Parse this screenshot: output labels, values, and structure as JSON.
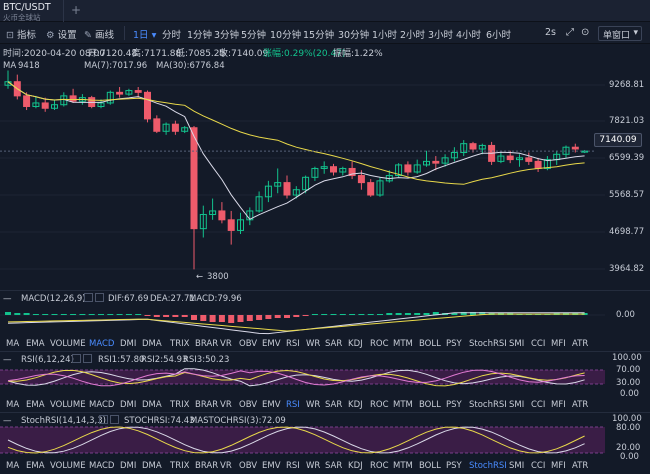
{
  "header": {
    "pair": "BTC/USDT",
    "exchange": "火币全球站",
    "add_tab": "+"
  },
  "toolbar": {
    "indicator": "指标",
    "settings": "设置",
    "draw": "画线",
    "periods": [
      "1日",
      "分时",
      "1分钟",
      "3分钟",
      "5分钟",
      "10分钟",
      "15分钟",
      "30分钟",
      "1小时",
      "2小时",
      "3小时",
      "4小时",
      "6小时"
    ],
    "active_period": "1日",
    "countdown": "2s",
    "layout": "单窗口"
  },
  "info": {
    "time": "时间:2020-04-20 08:00",
    "open": "开:7120.48",
    "high": "高:7171.88",
    "low": "低:7085.25",
    "close": "收:7140.09",
    "change_pct": "涨幅:0.29%(20.47)",
    "amplitude": "振幅:1.22%"
  },
  "main": {
    "ma_label": "MA",
    "ma7": "MA(7):7017.96",
    "ma30": "MA(30):6776.84",
    "high_marker": "9418",
    "low_marker": "3800",
    "price_axis": [
      "9268.81",
      "7821.03",
      "6599.39",
      "5568.57",
      "4698.77",
      "3964.82"
    ],
    "last_price": "7140.09"
  },
  "macd": {
    "name": "MACD(12,26,9)",
    "dif": "DIF:67.69",
    "dea": "DEA:27.71",
    "macd": "MACD:79.96",
    "axis": "0.00"
  },
  "rsi": {
    "name": "RSI(6,12,24)",
    "rsi1": "RSI1:57.80",
    "rsi2": "RSI2:54.93",
    "rsi3": "RSI3:50.23",
    "axis": [
      "100.00",
      "70.00",
      "30.00",
      "0.00"
    ]
  },
  "stoch": {
    "name": "StochRSI(14,14,3,3)",
    "stoch": "STOCHRSI:74.43",
    "ma": "MASTOCHRSI(3):72.09",
    "axis": [
      "100.00",
      "80.00",
      "20.00",
      "0.00"
    ]
  },
  "indicator_tabs": [
    "MA",
    "EMA",
    "VOLUME",
    "MACD",
    "DMI",
    "DMA",
    "TRIX",
    "BRAR",
    "VR",
    "OBV",
    "EMV",
    "RSI",
    "WR",
    "SAR",
    "KDJ",
    "ROC",
    "MTM",
    "BOLL",
    "PSY",
    "StochRSI",
    "SMI",
    "CCI",
    "MFI",
    "ATR"
  ],
  "indicator_tabs_active_1": "MACD",
  "indicator_tabs_active_2": "RSI",
  "indicator_tabs_active_3": "StochRSI",
  "colors": {
    "up": "#13c28d",
    "down": "#ee5b6b",
    "ma7": "#d9d9e8",
    "ma30": "#e8d84a",
    "accent": "#4a8cff"
  },
  "chart_data": {
    "type": "candlestick",
    "series": [
      {
        "o": 9000,
        "h": 9418,
        "c": 9100,
        "l": 8900
      },
      {
        "o": 9100,
        "h": 9300,
        "c": 8700,
        "l": 8600
      },
      {
        "o": 8700,
        "h": 8800,
        "c": 8400,
        "l": 8300
      },
      {
        "o": 8400,
        "h": 8700,
        "c": 8500,
        "l": 8350
      },
      {
        "o": 8500,
        "h": 8650,
        "c": 8350,
        "l": 8250
      },
      {
        "o": 8350,
        "h": 8600,
        "c": 8450,
        "l": 8300
      },
      {
        "o": 8450,
        "h": 8800,
        "c": 8700,
        "l": 8400
      },
      {
        "o": 8700,
        "h": 8900,
        "c": 8550,
        "l": 8500
      },
      {
        "o": 8550,
        "h": 8750,
        "c": 8650,
        "l": 8450
      },
      {
        "o": 8650,
        "h": 8700,
        "c": 8400,
        "l": 8350
      },
      {
        "o": 8400,
        "h": 8600,
        "c": 8500,
        "l": 8350
      },
      {
        "o": 8500,
        "h": 8850,
        "c": 8800,
        "l": 8450
      },
      {
        "o": 8800,
        "h": 8950,
        "c": 8750,
        "l": 8650
      },
      {
        "o": 8750,
        "h": 8900,
        "c": 8850,
        "l": 8700
      },
      {
        "o": 8850,
        "h": 8950,
        "c": 8800,
        "l": 8650
      },
      {
        "o": 8800,
        "h": 8850,
        "c": 8050,
        "l": 7950
      },
      {
        "o": 8050,
        "h": 8150,
        "c": 7700,
        "l": 7650
      },
      {
        "o": 7700,
        "h": 7950,
        "c": 7900,
        "l": 7600
      },
      {
        "o": 7900,
        "h": 8000,
        "c": 7700,
        "l": 7600
      },
      {
        "o": 7700,
        "h": 7850,
        "c": 7800,
        "l": 7650
      },
      {
        "o": 7800,
        "h": 7850,
        "c": 4950,
        "l": 3800
      },
      {
        "o": 4950,
        "h": 5600,
        "c": 5350,
        "l": 4700
      },
      {
        "o": 5350,
        "h": 5800,
        "c": 5450,
        "l": 5200
      },
      {
        "o": 5450,
        "h": 5700,
        "c": 5200,
        "l": 5100
      },
      {
        "o": 5200,
        "h": 5450,
        "c": 4900,
        "l": 4500
      },
      {
        "o": 4900,
        "h": 5400,
        "c": 5200,
        "l": 4800
      },
      {
        "o": 5200,
        "h": 5550,
        "c": 5450,
        "l": 5050
      },
      {
        "o": 5450,
        "h": 6000,
        "c": 5850,
        "l": 5400
      },
      {
        "o": 5850,
        "h": 6300,
        "c": 6150,
        "l": 5700
      },
      {
        "o": 6150,
        "h": 6650,
        "c": 6250,
        "l": 5950
      },
      {
        "o": 6250,
        "h": 6450,
        "c": 5900,
        "l": 5800
      },
      {
        "o": 5900,
        "h": 6150,
        "c": 6050,
        "l": 5800
      },
      {
        "o": 6050,
        "h": 6450,
        "c": 6400,
        "l": 5950
      },
      {
        "o": 6400,
        "h": 6700,
        "c": 6650,
        "l": 6300
      },
      {
        "o": 6650,
        "h": 6850,
        "c": 6700,
        "l": 6500
      },
      {
        "o": 6700,
        "h": 6780,
        "c": 6550,
        "l": 6450
      },
      {
        "o": 6550,
        "h": 6700,
        "c": 6650,
        "l": 6450
      },
      {
        "o": 6650,
        "h": 6850,
        "c": 6450,
        "l": 6350
      },
      {
        "o": 6450,
        "h": 6600,
        "c": 6250,
        "l": 6050
      },
      {
        "o": 6250,
        "h": 6350,
        "c": 5900,
        "l": 5850
      },
      {
        "o": 5900,
        "h": 6400,
        "c": 6300,
        "l": 5850
      },
      {
        "o": 6300,
        "h": 6600,
        "c": 6450,
        "l": 6250
      },
      {
        "o": 6450,
        "h": 6800,
        "c": 6750,
        "l": 6400
      },
      {
        "o": 6750,
        "h": 6850,
        "c": 6550,
        "l": 6450
      },
      {
        "o": 6550,
        "h": 6900,
        "c": 6750,
        "l": 6500
      },
      {
        "o": 6750,
        "h": 7150,
        "c": 6850,
        "l": 6700
      },
      {
        "o": 6850,
        "h": 7000,
        "c": 6800,
        "l": 6600
      },
      {
        "o": 6800,
        "h": 7050,
        "c": 6950,
        "l": 6700
      },
      {
        "o": 6950,
        "h": 7250,
        "c": 7100,
        "l": 6850
      },
      {
        "o": 7100,
        "h": 7450,
        "c": 7350,
        "l": 7000
      },
      {
        "o": 7350,
        "h": 7400,
        "c": 7200,
        "l": 7100
      },
      {
        "o": 7200,
        "h": 7350,
        "c": 7300,
        "l": 7050
      },
      {
        "o": 7300,
        "h": 7400,
        "c": 6850,
        "l": 6750
      },
      {
        "o": 6850,
        "h": 7100,
        "c": 7000,
        "l": 6800
      },
      {
        "o": 7000,
        "h": 7150,
        "c": 6900,
        "l": 6800
      },
      {
        "o": 6900,
        "h": 7050,
        "c": 6950,
        "l": 6700
      },
      {
        "o": 6950,
        "h": 7100,
        "c": 6850,
        "l": 6750
      },
      {
        "o": 6850,
        "h": 6950,
        "c": 6650,
        "l": 6550
      },
      {
        "o": 6650,
        "h": 7000,
        "c": 6900,
        "l": 6600
      },
      {
        "o": 6900,
        "h": 7150,
        "c": 7050,
        "l": 6750
      },
      {
        "o": 7050,
        "h": 7300,
        "c": 7250,
        "l": 6950
      },
      {
        "o": 7250,
        "h": 7350,
        "c": 7200,
        "l": 7100
      },
      {
        "o": 7120,
        "h": 7172,
        "c": 7140,
        "l": 7085
      }
    ],
    "ylim": [
      3500,
      9600
    ]
  }
}
